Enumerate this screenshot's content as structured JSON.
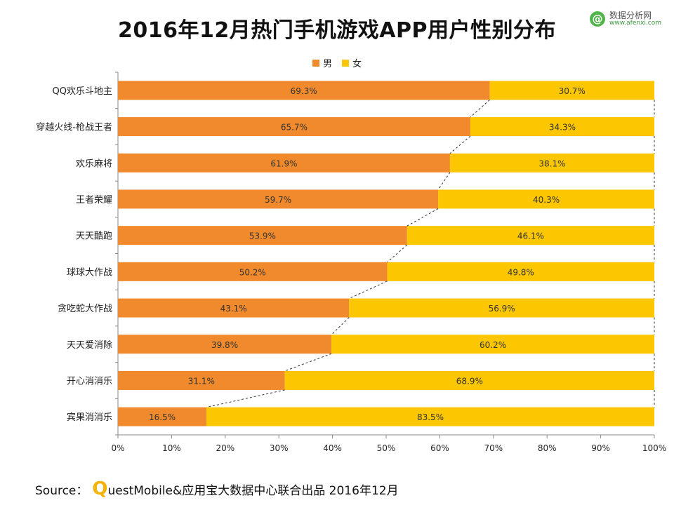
{
  "title": "2016年12月热门手机游戏APP用户性别分布",
  "watermark": {
    "logo": "@",
    "name": "数据分析网",
    "url": "www.afenxi.com"
  },
  "legend": [
    {
      "label": "男",
      "color": "#f08a2c"
    },
    {
      "label": "女",
      "color": "#fcc700"
    }
  ],
  "source": {
    "prefix": "Source：",
    "q_letter": "Q",
    "rest": "uestMobile&应用宝大数据中心联合出品 2016年12月"
  },
  "chart_data": {
    "type": "bar",
    "orientation": "horizontal",
    "stacked": true,
    "categories": [
      "QQ欢乐斗地主",
      "穿越火线-枪战王者",
      "欢乐麻将",
      "王者荣耀",
      "天天酷跑",
      "球球大作战",
      "贪吃蛇大作战",
      "天天爱消除",
      "开心消消乐",
      "宾果消消乐"
    ],
    "series": [
      {
        "name": "男",
        "color": "#f08a2c",
        "values": [
          69.3,
          65.7,
          61.9,
          59.7,
          53.9,
          50.2,
          43.1,
          39.8,
          31.1,
          16.5
        ],
        "labels": [
          "69.3%",
          "65.7%",
          "61.9%",
          "59.7%",
          "53.9%",
          "50.2%",
          "43.1%",
          "39.8%",
          "31.1%",
          "16.5%"
        ]
      },
      {
        "name": "女",
        "color": "#fcc700",
        "values": [
          30.7,
          34.3,
          38.1,
          40.3,
          46.1,
          49.8,
          56.9,
          60.2,
          68.9,
          83.5
        ],
        "labels": [
          "30.7%",
          "34.3%",
          "38.1%",
          "40.3%",
          "46.1%",
          "49.8%",
          "56.9%",
          "60.2%",
          "68.9%",
          "83.5%"
        ]
      }
    ],
    "xlim": [
      0,
      100
    ],
    "xticks": [
      "0%",
      "10%",
      "20%",
      "30%",
      "40%",
      "50%",
      "60%",
      "70%",
      "80%",
      "90%",
      "100%"
    ],
    "connector_lines": "dashed",
    "legend_position": "top-center"
  }
}
